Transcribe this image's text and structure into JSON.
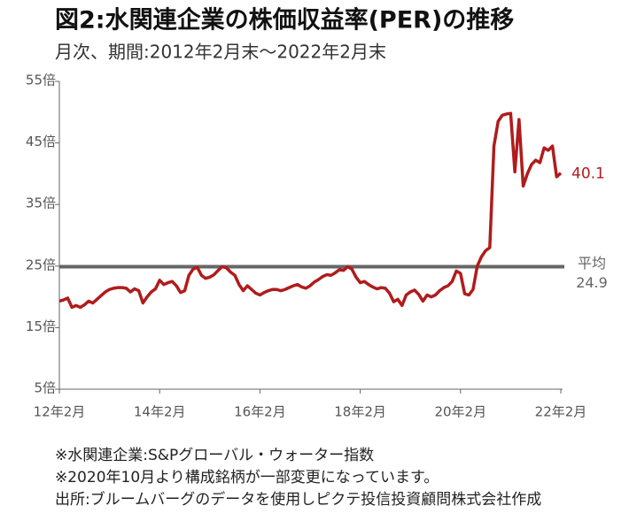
{
  "chart_data": {
    "type": "line",
    "title": "図2:水関連企業の株価収益率(PER)の推移",
    "subtitle": "月次、期間:2012年2月末～2022年2月末",
    "x": [
      "2012-02",
      "2012-03",
      "2012-04",
      "2012-05",
      "2012-06",
      "2012-07",
      "2012-08",
      "2012-09",
      "2012-10",
      "2012-11",
      "2012-12",
      "2013-01",
      "2013-02",
      "2013-03",
      "2013-04",
      "2013-05",
      "2013-06",
      "2013-07",
      "2013-08",
      "2013-09",
      "2013-10",
      "2013-11",
      "2013-12",
      "2014-01",
      "2014-02",
      "2014-03",
      "2014-04",
      "2014-05",
      "2014-06",
      "2014-07",
      "2014-08",
      "2014-09",
      "2014-10",
      "2014-11",
      "2014-12",
      "2015-01",
      "2015-02",
      "2015-03",
      "2015-04",
      "2015-05",
      "2015-06",
      "2015-07",
      "2015-08",
      "2015-09",
      "2015-10",
      "2015-11",
      "2015-12",
      "2016-01",
      "2016-02",
      "2016-03",
      "2016-04",
      "2016-05",
      "2016-06",
      "2016-07",
      "2016-08",
      "2016-09",
      "2016-10",
      "2016-11",
      "2016-12",
      "2017-01",
      "2017-02",
      "2017-03",
      "2017-04",
      "2017-05",
      "2017-06",
      "2017-07",
      "2017-08",
      "2017-09",
      "2017-10",
      "2017-11",
      "2017-12",
      "2018-01",
      "2018-02",
      "2018-03",
      "2018-04",
      "2018-05",
      "2018-06",
      "2018-07",
      "2018-08",
      "2018-09",
      "2018-10",
      "2018-11",
      "2018-12",
      "2019-01",
      "2019-02",
      "2019-03",
      "2019-04",
      "2019-05",
      "2019-06",
      "2019-07",
      "2019-08",
      "2019-09",
      "2019-10",
      "2019-11",
      "2019-12",
      "2020-01",
      "2020-02",
      "2020-03",
      "2020-04",
      "2020-05",
      "2020-06",
      "2020-07",
      "2020-08",
      "2020-09",
      "2020-10",
      "2020-11",
      "2020-12",
      "2021-01",
      "2021-02",
      "2021-03",
      "2021-04",
      "2021-05",
      "2021-06",
      "2021-07",
      "2021-08",
      "2021-09",
      "2021-10",
      "2021-11",
      "2021-12",
      "2022-01",
      "2022-02"
    ],
    "series": [
      {
        "name": "PER",
        "color": "#b01c1c",
        "values": [
          19.3,
          19.5,
          19.8,
          18.3,
          18.6,
          18.3,
          18.7,
          19.3,
          19.0,
          19.6,
          20.2,
          20.8,
          21.2,
          21.4,
          21.5,
          21.5,
          21.4,
          20.8,
          21.3,
          21.0,
          19.0,
          20.0,
          20.8,
          21.3,
          22.7,
          22.0,
          22.3,
          22.5,
          21.8,
          20.7,
          21.0,
          23.5,
          24.5,
          24.8,
          23.5,
          23.0,
          23.2,
          23.6,
          24.3,
          24.9,
          24.7,
          24.0,
          23.5,
          22.0,
          21.0,
          21.8,
          21.2,
          20.6,
          20.3,
          20.7,
          21.0,
          21.2,
          21.2,
          21.0,
          21.2,
          21.5,
          21.8,
          22.0,
          21.6,
          21.4,
          21.8,
          22.4,
          22.8,
          23.3,
          23.6,
          23.5,
          23.9,
          24.4,
          24.3,
          24.9,
          24.5,
          23.2,
          22.3,
          22.5,
          22.0,
          21.6,
          21.3,
          21.5,
          21.4,
          20.6,
          19.2,
          19.6,
          18.6,
          20.3,
          20.8,
          21.1,
          20.4,
          19.3,
          20.3,
          20.0,
          20.3,
          21.0,
          21.5,
          21.8,
          22.5,
          24.2,
          23.8,
          20.5,
          20.3,
          21.2,
          25.0,
          26.5,
          27.5,
          28.0,
          44.5,
          48.5,
          49.5,
          49.7,
          49.8,
          40.3,
          48.8,
          38.0,
          40.0,
          41.5,
          42.2,
          41.8,
          44.2,
          43.8,
          44.5,
          39.5,
          40.1
        ]
      }
    ],
    "average": 24.9,
    "average_label": "平均",
    "average_color": "#666666",
    "xlim": [
      "2012-02",
      "2022-02"
    ],
    "xticks": [
      {
        "value": "2012-02",
        "label": "12年2月"
      },
      {
        "value": "2014-02",
        "label": "14年2月"
      },
      {
        "value": "2016-02",
        "label": "16年2月"
      },
      {
        "value": "2018-02",
        "label": "18年2月"
      },
      {
        "value": "2020-02",
        "label": "20年2月"
      },
      {
        "value": "2022-02",
        "label": "22年2月"
      }
    ],
    "ylim": [
      5,
      55
    ],
    "yticks": [
      {
        "value": 5,
        "label": "5倍"
      },
      {
        "value": 15,
        "label": "15倍"
      },
      {
        "value": 25,
        "label": "25倍"
      },
      {
        "value": 35,
        "label": "35倍"
      },
      {
        "value": 45,
        "label": "45倍"
      },
      {
        "value": 55,
        "label": "55倍"
      }
    ],
    "notes": [
      "※水関連企業:S&Pグローバル・ウォーター指数",
      "※2020年10月より構成銘柄が一部変更になっています。",
      "出所:ブルームバーグのデータを使用しピクテ投信投資顧問株式会社作成"
    ]
  }
}
